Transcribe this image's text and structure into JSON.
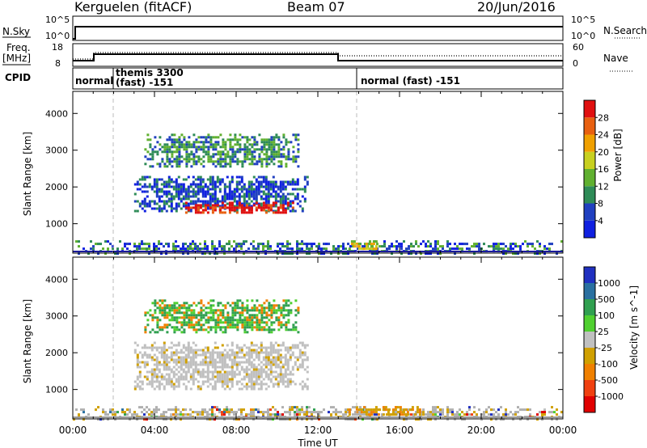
{
  "header": {
    "station": "Kerguelen (fitACF)",
    "beam": "Beam 07",
    "date": "20/Jun/2016"
  },
  "top_panels": {
    "nsky_label": "N.Sky",
    "nsky_ticks": [
      "10^5",
      "10^0"
    ],
    "nsearch_label": "N.Search",
    "freq_label": "Freq.",
    "freq_unit": "[MHz]",
    "freq_ticks": [
      "18",
      "8"
    ],
    "nave_label": "Nave",
    "nave_ticks": [
      "60",
      "0"
    ],
    "cpid_label": "CPID",
    "cpid_segments": [
      {
        "text": "normal",
        "start_hour": 0
      },
      {
        "text": "themis 3300",
        "start_hour": 1.9
      },
      {
        "text": "(fast) -151",
        "start_hour": 1.9
      },
      {
        "text": "normal (fast) -151",
        "start_hour": 14.0
      }
    ]
  },
  "colors": {
    "power": [
      "#1020e0",
      "#2040c0",
      "#2e8b57",
      "#60b030",
      "#c8d020",
      "#f0a000",
      "#e86010",
      "#e01010"
    ],
    "velocity": [
      "#2030c0",
      "#2a70a0",
      "#30a050",
      "#50d030",
      "#c0c0c0",
      "#d0a000",
      "#f08000",
      "#f04010",
      "#e00000"
    ],
    "ground": "#b0b0b0"
  },
  "chart_data": [
    {
      "type": "heatmap",
      "title": "Power",
      "xlabel": "",
      "ylabel": "Slant Range [km]",
      "xlim": [
        0,
        24
      ],
      "ylim": [
        200,
        4600
      ],
      "yticks": [
        "1000",
        "2000",
        "3000",
        "4000"
      ],
      "colorbar_label": "Power [dB]",
      "colorbar_ticks": [
        "4",
        "8",
        "12",
        "16",
        "20",
        "24",
        "28"
      ],
      "regions": [
        {
          "t0": 0.0,
          "t1": 24.0,
          "r0": 200,
          "r1": 550,
          "level": "low-mixed"
        },
        {
          "t0": 3.5,
          "t1": 11.0,
          "r0": 2550,
          "r1": 3450,
          "level": 10
        },
        {
          "t0": 3.0,
          "t1": 11.5,
          "r0": 1350,
          "r1": 2300,
          "level": 8
        },
        {
          "t0": 5.5,
          "t1": 10.8,
          "r0": 1300,
          "r1": 1600,
          "level": 28
        },
        {
          "t0": 13.5,
          "t1": 15.0,
          "r0": 300,
          "r1": 550,
          "level": 20
        }
      ]
    },
    {
      "type": "heatmap",
      "title": "Velocity",
      "xlabel": "Time UT",
      "ylabel": "Slant Range [km]",
      "xlim": [
        0,
        24
      ],
      "ylim": [
        200,
        4600
      ],
      "xticks": [
        "00:00",
        "04:00",
        "08:00",
        "12:00",
        "16:00",
        "20:00",
        "00:00"
      ],
      "yticks": [
        "1000",
        "2000",
        "3000",
        "4000"
      ],
      "colorbar_label": "Velocity [m s^-1]",
      "colorbar_ticks": [
        "1000",
        "500",
        "100",
        "25",
        "-25",
        "-100",
        "-500",
        "-1000"
      ],
      "regions": [
        {
          "t0": 0.0,
          "t1": 24.0,
          "r0": 200,
          "r1": 550,
          "level": "ground"
        },
        {
          "t0": 3.5,
          "t1": 11.0,
          "r0": 2550,
          "r1": 3450,
          "level": 100
        },
        {
          "t0": 3.0,
          "t1": 11.5,
          "r0": 1000,
          "r1": 2300,
          "level": 0
        },
        {
          "t0": 13.5,
          "t1": 17.0,
          "r0": 300,
          "r1": 550,
          "level": -100
        }
      ]
    }
  ]
}
